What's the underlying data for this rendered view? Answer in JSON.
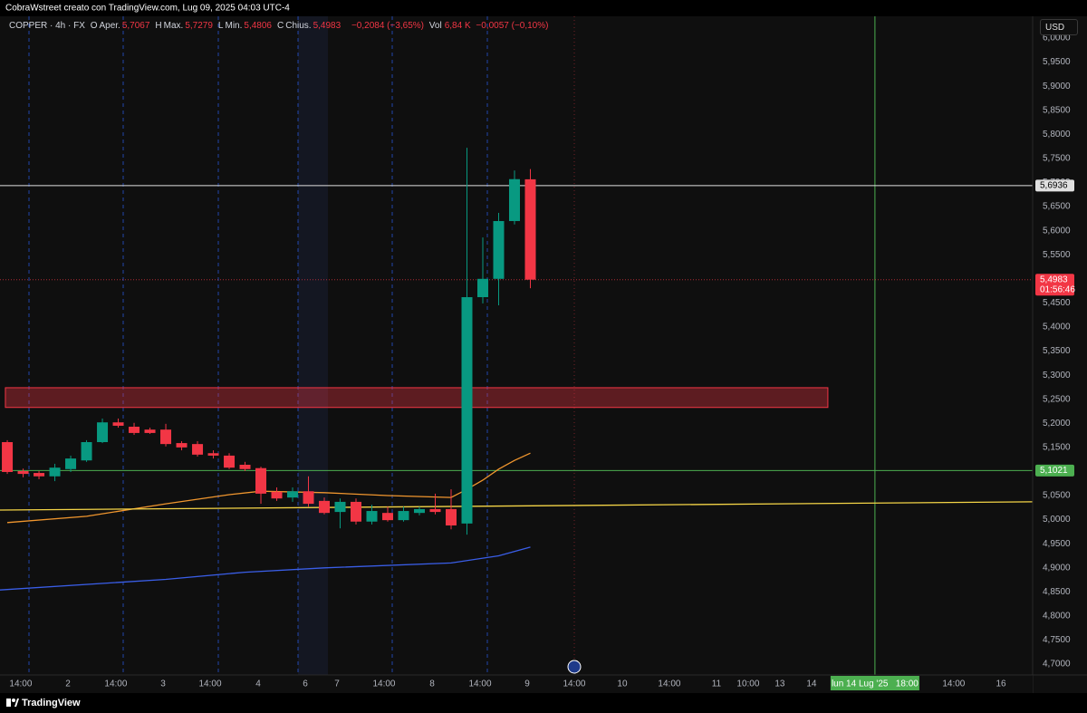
{
  "header": {
    "caption": "CobraWstreet creato con TradingView.com, Lug 09, 2025 04:03 UTC-4",
    "currency_button": "USD",
    "brand": "TradingView"
  },
  "chart_data": {
    "type": "candlestick",
    "symbol": "COPPER · 4h · FX",
    "legend": [
      {
        "key": "O",
        "name": "Aper.",
        "label": "5,7067"
      },
      {
        "key": "H",
        "name": "Max.",
        "label": "5,7279"
      },
      {
        "key": "L",
        "name": "Min.",
        "label": "5,4806"
      },
      {
        "key": "C",
        "name": "Chius.",
        "label": "5,4983"
      }
    ],
    "change_label": "−0,2084 (−3,65%)",
    "volume": {
      "name": "Vol",
      "label": "6,84 K",
      "change_label": "−0,0057 (−0,10%)"
    },
    "up_color": "#089981",
    "down_color": "#f23645",
    "open": [
      5.161,
      5.101,
      5.097,
      5.09,
      5.105,
      5.123,
      5.161,
      5.202,
      5.193,
      5.187,
      5.187,
      5.159,
      5.157,
      5.138,
      5.133,
      5.114,
      5.107,
      5.058,
      5.046,
      5.059,
      5.039,
      5.016,
      5.037,
      4.996,
      5.014,
      4.999,
      5.014,
      5.022,
      5.022,
      4.992,
      5.462,
      5.5,
      5.62,
      5.7067
    ],
    "high": [
      5.165,
      5.106,
      5.101,
      5.116,
      5.133,
      5.165,
      5.21,
      5.21,
      5.201,
      5.191,
      5.199,
      5.163,
      5.163,
      5.144,
      5.138,
      5.12,
      5.11,
      5.067,
      5.067,
      5.09,
      5.046,
      5.044,
      5.044,
      5.031,
      5.027,
      5.027,
      5.027,
      5.054,
      5.063,
      5.772,
      5.586,
      5.637,
      5.725,
      5.7279
    ],
    "low": [
      5.095,
      5.088,
      5.084,
      5.08,
      5.099,
      5.12,
      5.159,
      5.191,
      5.176,
      5.178,
      5.152,
      5.144,
      5.131,
      5.127,
      5.105,
      5.101,
      5.033,
      5.039,
      5.037,
      5.027,
      5.011,
      4.982,
      4.99,
      4.99,
      4.996,
      4.996,
      5.009,
      5.011,
      4.98,
      4.969,
      5.449,
      5.445,
      5.613,
      5.4806
    ],
    "close": [
      5.099,
      5.095,
      5.09,
      5.108,
      5.127,
      5.161,
      5.202,
      5.195,
      5.18,
      5.18,
      5.157,
      5.15,
      5.135,
      5.133,
      5.108,
      5.105,
      5.054,
      5.044,
      5.059,
      5.033,
      5.014,
      5.037,
      4.996,
      5.018,
      4.999,
      5.018,
      5.022,
      5.016,
      4.988,
      5.462,
      5.5,
      5.62,
      5.707,
      5.4983
    ],
    "lines": [
      {
        "color": "#f0962e",
        "x": [
          0,
          5,
          10,
          14,
          16,
          20,
          24,
          28,
          29,
          30,
          31,
          32,
          33
        ],
        "values": [
          4.994,
          5.007,
          5.033,
          5.052,
          5.059,
          5.056,
          5.05,
          5.046,
          5.063,
          5.082,
          5.105,
          5.123,
          5.138
        ]
      },
      {
        "color": "#f5d547",
        "x": [
          -0.46,
          64.69
        ],
        "values": [
          5.02,
          5.037
        ]
      },
      {
        "color": "#3a5ee8",
        "x": [
          -0.46,
          10,
          15,
          20,
          28,
          31,
          33
        ],
        "values": [
          4.854,
          4.876,
          4.891,
          4.9,
          4.91,
          4.925,
          4.943
        ]
      }
    ],
    "price_lines": [
      {
        "value": 5.6936,
        "label": "5,6936",
        "color": "#e0e0e0",
        "text_color": "#000000",
        "style": "solid"
      },
      {
        "value": 5.4983,
        "label": "5,4983",
        "sublabel": "01:56:46",
        "color": "#f23645",
        "text_color": "#ffffff",
        "style": "dotted"
      },
      {
        "value": 5.1021,
        "label": "5,1021",
        "color": "#4caf50",
        "text_color": "#ffffff",
        "style": "solid"
      }
    ],
    "zone": {
      "x": [
        -0.12,
        51.77
      ],
      "y": [
        5.233,
        5.274
      ],
      "color": "#f23645"
    },
    "cursor_x": {
      "value": 54.74,
      "label": "lun 14 Lug '25   18:00",
      "color": "#4caf50"
    },
    "xlim": [
      -0.46,
      64.69
    ],
    "ylim": [
      4.6776,
      6.0451
    ],
    "grid": false,
    "xticks": [
      {
        "value": 0.85,
        "label": "14:00"
      },
      {
        "value": 3.83,
        "label": "2"
      },
      {
        "value": 6.85,
        "label": "14:00"
      },
      {
        "value": 9.83,
        "label": "3"
      },
      {
        "value": 12.8,
        "label": "14:00"
      },
      {
        "value": 15.83,
        "label": "4"
      },
      {
        "value": 18.8,
        "label": "6"
      },
      {
        "value": 20.8,
        "label": "7"
      },
      {
        "value": 23.77,
        "label": "14:00"
      },
      {
        "value": 26.8,
        "label": "8"
      },
      {
        "value": 29.83,
        "label": "14:00"
      },
      {
        "value": 32.8,
        "label": "9"
      },
      {
        "value": 35.77,
        "label": "14:00"
      },
      {
        "value": 38.8,
        "label": "10"
      },
      {
        "value": 41.77,
        "label": "14:00"
      },
      {
        "value": 44.74,
        "label": "11"
      },
      {
        "value": 46.74,
        "label": "10:00"
      },
      {
        "value": 48.74,
        "label": "13"
      },
      {
        "value": 50.74,
        "label": "14"
      },
      {
        "value": 59.71,
        "label": "14:00"
      },
      {
        "value": 62.69,
        "label": "16"
      }
    ],
    "yticks": [
      {
        "value": 4.7,
        "label": "4,7000"
      },
      {
        "value": 4.75,
        "label": "4,7500"
      },
      {
        "value": 4.8,
        "label": "4,8000"
      },
      {
        "value": 4.85,
        "label": "4,8500"
      },
      {
        "value": 4.9,
        "label": "4,9000"
      },
      {
        "value": 4.95,
        "label": "4,9500"
      },
      {
        "value": 5.0,
        "label": "5,0000"
      },
      {
        "value": 5.05,
        "label": "5,0500"
      },
      {
        "value": 5.1,
        "label": "5,1000"
      },
      {
        "value": 5.15,
        "label": "5,1500"
      },
      {
        "value": 5.2,
        "label": "5,2000"
      },
      {
        "value": 5.25,
        "label": "5,2500"
      },
      {
        "value": 5.3,
        "label": "5,3000"
      },
      {
        "value": 5.35,
        "label": "5,3500"
      },
      {
        "value": 5.4,
        "label": "5,4000"
      },
      {
        "value": 5.45,
        "label": "5,4500"
      },
      {
        "value": 5.5,
        "label": "5,5000"
      },
      {
        "value": 5.55,
        "label": "5,5500"
      },
      {
        "value": 5.6,
        "label": "5,6000"
      },
      {
        "value": 5.65,
        "label": "5,6500"
      },
      {
        "value": 5.7,
        "label": "5,7000"
      },
      {
        "value": 5.75,
        "label": "5,7500"
      },
      {
        "value": 5.8,
        "label": "5,8000"
      },
      {
        "value": 5.85,
        "label": "5,8500"
      },
      {
        "value": 5.9,
        "label": "5,9000"
      },
      {
        "value": 5.95,
        "label": "5,9500"
      },
      {
        "value": 6.0,
        "label": "6,0000"
      }
    ]
  }
}
